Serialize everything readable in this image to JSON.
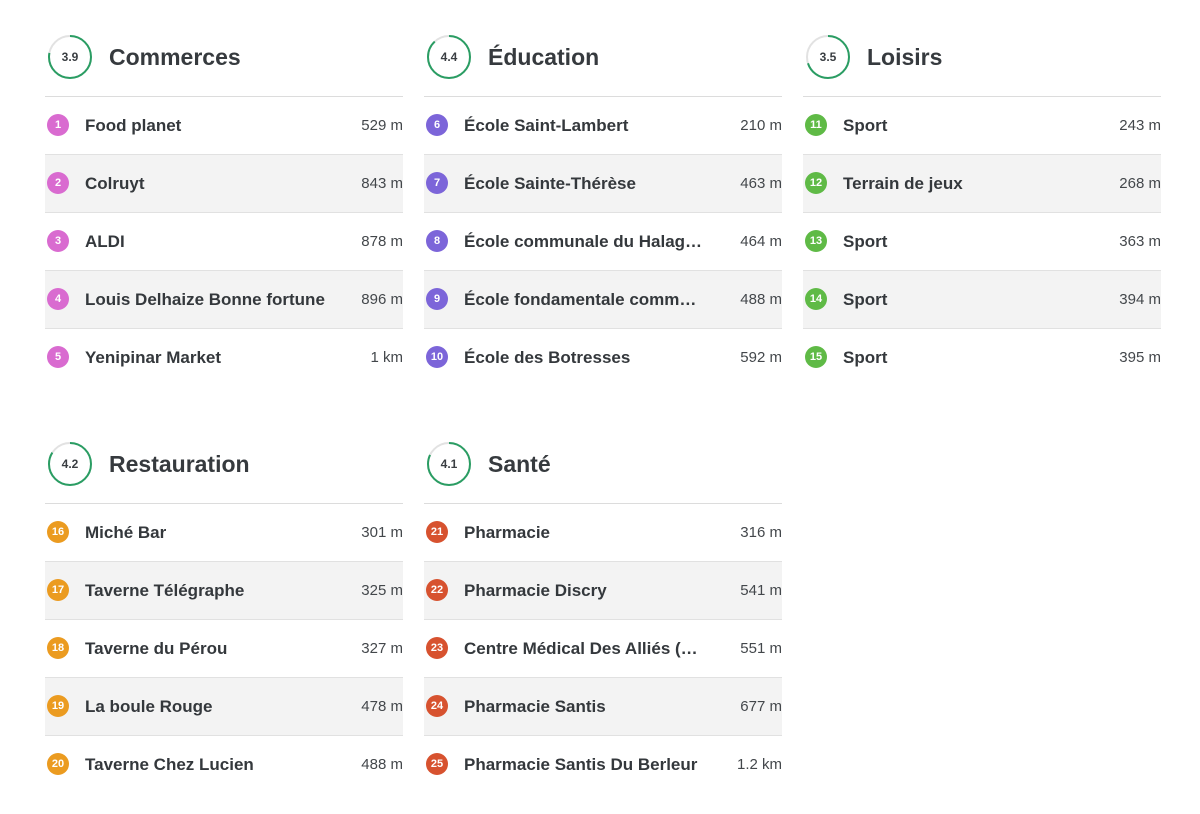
{
  "colors": {
    "ring_track": "#e2e2e2",
    "ring_fill": "#2a9d63"
  },
  "categories": [
    {
      "id": "commerces",
      "title": "Commerces",
      "score": "3.9",
      "score_fraction": 0.78,
      "badge_color": "#d96bd0",
      "items": [
        {
          "num": "1",
          "name": "Food planet",
          "dist": "529 m"
        },
        {
          "num": "2",
          "name": "Colruyt",
          "dist": "843 m"
        },
        {
          "num": "3",
          "name": "ALDI",
          "dist": "878 m"
        },
        {
          "num": "4",
          "name": "Louis Delhaize Bonne fortune",
          "dist": "896 m"
        },
        {
          "num": "5",
          "name": "Yenipinar Market",
          "dist": "1 km"
        }
      ]
    },
    {
      "id": "education",
      "title": "Éducation",
      "score": "4.4",
      "score_fraction": 0.88,
      "badge_color": "#7c65d9",
      "items": [
        {
          "num": "6",
          "name": "École Saint-Lambert",
          "dist": "210 m"
        },
        {
          "num": "7",
          "name": "École Sainte-Thérèse",
          "dist": "463 m"
        },
        {
          "num": "8",
          "name": "École communale du Halag…",
          "dist": "464 m"
        },
        {
          "num": "9",
          "name": "École fondamentale comm…",
          "dist": "488 m"
        },
        {
          "num": "10",
          "name": "École des Botresses",
          "dist": "592 m"
        }
      ]
    },
    {
      "id": "loisirs",
      "title": "Loisirs",
      "score": "3.5",
      "score_fraction": 0.7,
      "badge_color": "#5fba46",
      "items": [
        {
          "num": "11",
          "name": "Sport",
          "dist": "243 m"
        },
        {
          "num": "12",
          "name": "Terrain de jeux",
          "dist": "268 m"
        },
        {
          "num": "13",
          "name": "Sport",
          "dist": "363 m"
        },
        {
          "num": "14",
          "name": "Sport",
          "dist": "394 m"
        },
        {
          "num": "15",
          "name": "Sport",
          "dist": "395 m"
        }
      ]
    },
    {
      "id": "restauration",
      "title": "Restauration",
      "score": "4.2",
      "score_fraction": 0.84,
      "badge_color": "#eb9b20",
      "items": [
        {
          "num": "16",
          "name": "Miché Bar",
          "dist": "301 m"
        },
        {
          "num": "17",
          "name": "Taverne Télégraphe",
          "dist": "325 m"
        },
        {
          "num": "18",
          "name": "Taverne du Pérou",
          "dist": "327 m"
        },
        {
          "num": "19",
          "name": "La boule Rouge",
          "dist": "478 m"
        },
        {
          "num": "20",
          "name": "Taverne Chez Lucien",
          "dist": "488 m"
        }
      ]
    },
    {
      "id": "sante",
      "title": "Santé",
      "score": "4.1",
      "score_fraction": 0.82,
      "badge_color": "#d7522f",
      "items": [
        {
          "num": "21",
          "name": "Pharmacie",
          "dist": "316 m"
        },
        {
          "num": "22",
          "name": "Pharmacie Discry",
          "dist": "541 m"
        },
        {
          "num": "23",
          "name": "Centre Médical Des Alliés (…",
          "dist": "551 m"
        },
        {
          "num": "24",
          "name": "Pharmacie Santis",
          "dist": "677 m"
        },
        {
          "num": "25",
          "name": "Pharmacie Santis Du Berleur",
          "dist": "1.2 km"
        }
      ]
    }
  ]
}
